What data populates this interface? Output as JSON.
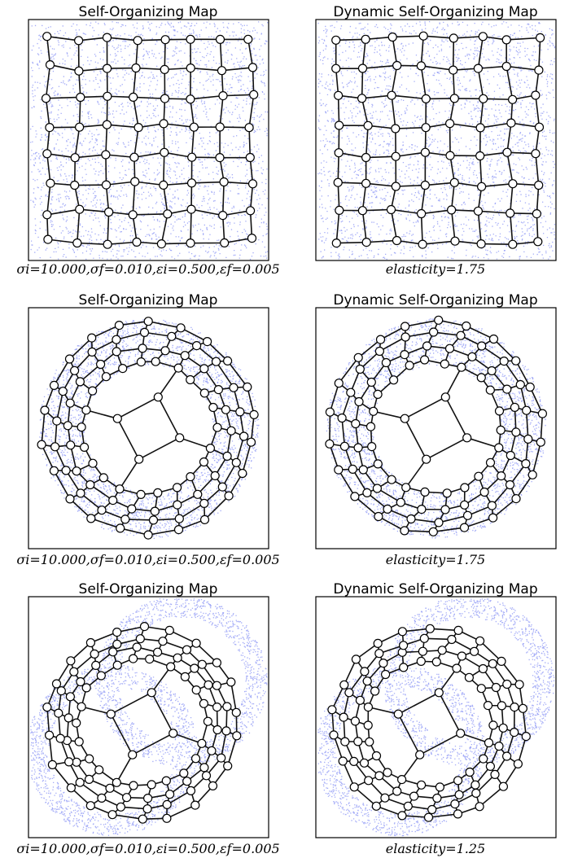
{
  "panels": [
    {
      "title": "Self-Organizing Map",
      "caption": "σi=10.000,σf=0.010,εi=0.500,εf=0.005"
    },
    {
      "title": "Dynamic Self-Organizing Map",
      "caption": "elasticity=1.75"
    },
    {
      "title": "Self-Organizing Map",
      "caption": "σi=10.000,σf=0.010,εi=0.500,εf=0.005"
    },
    {
      "title": "Dynamic Self-Organizing Map",
      "caption": "elasticity=1.75"
    },
    {
      "title": "Self-Organizing Map",
      "caption": "σi=10.000,σf=0.010,εi=0.500,εf=0.005"
    },
    {
      "title": "Dynamic Self-Organizing Map",
      "caption": "elasticity=1.25"
    }
  ]
}
